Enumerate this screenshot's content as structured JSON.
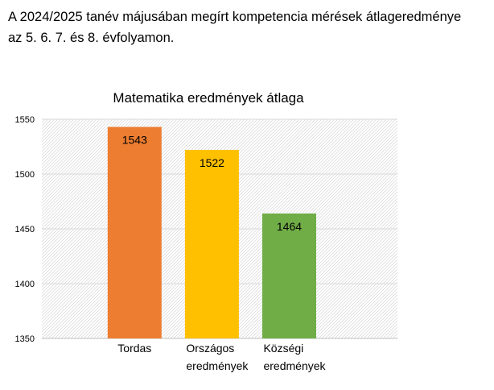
{
  "intro": {
    "line1": "A 2024/2025 tanév májusában megírt kompetencia mérések átlageredménye",
    "line2": "az 5. 6. 7. és 8. évfolyamon."
  },
  "chart_data": {
    "type": "bar",
    "title": "Matematika eredmények átlaga",
    "xlabel": "",
    "ylabel": "",
    "ylim": [
      1350,
      1550
    ],
    "yticks": [
      "1550",
      "1500",
      "1450",
      "1400",
      "1350"
    ],
    "grid": true,
    "categories": [
      [
        "Tordas"
      ],
      [
        "Országos",
        "eredmények"
      ],
      [
        "Községi",
        "eredmények"
      ]
    ],
    "values": [
      1543,
      1522,
      1464
    ],
    "data_labels": [
      "1543",
      "1522",
      "1464"
    ],
    "colors": [
      "#ED7D31",
      "#FFC000",
      "#70AD47"
    ],
    "background_pattern": "diagonal-hatch"
  }
}
